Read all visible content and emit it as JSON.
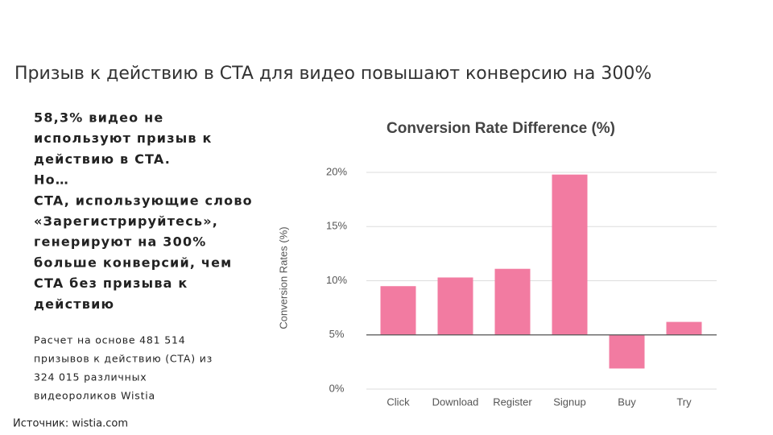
{
  "header": {
    "title": "Призыв к действию в CTA для видео повышают конверсию на 300%"
  },
  "body": {
    "lines": [
      "58,3% видео не",
      "используют призыв к",
      "действию в CTA.",
      "Но…",
      "CTA, использующие слово",
      "«Зарегистрируйтесь»,",
      "генерируют на 300%",
      "больше конверсий, чем",
      "CTA без призыва к",
      "действию"
    ]
  },
  "note": {
    "lines": [
      "Расчет на основе 481 514",
      "призывов к действию (CTA) из",
      "324 015 различных",
      "видеороликов Wistia"
    ]
  },
  "source": "Источник: wistia.com",
  "chart_data": {
    "type": "bar",
    "title": "Conversion Rate Difference (%)",
    "y_label": "Conversion Rates (%)",
    "categories": [
      "Click",
      "Download",
      "Register",
      "Signup",
      "Buy",
      "Try"
    ],
    "values": [
      9.5,
      10.3,
      11.1,
      19.8,
      1.9,
      6.2
    ],
    "color": "#f27ba1",
    "baseline": 5,
    "ylim": [
      0,
      20
    ],
    "yticks": [
      {
        "value": 0,
        "label": "0%"
      },
      {
        "value": 5,
        "label": "5%"
      },
      {
        "value": 10,
        "label": "10%"
      },
      {
        "value": 15,
        "label": "15%"
      },
      {
        "value": 20,
        "label": "20%"
      }
    ],
    "grid": true
  }
}
